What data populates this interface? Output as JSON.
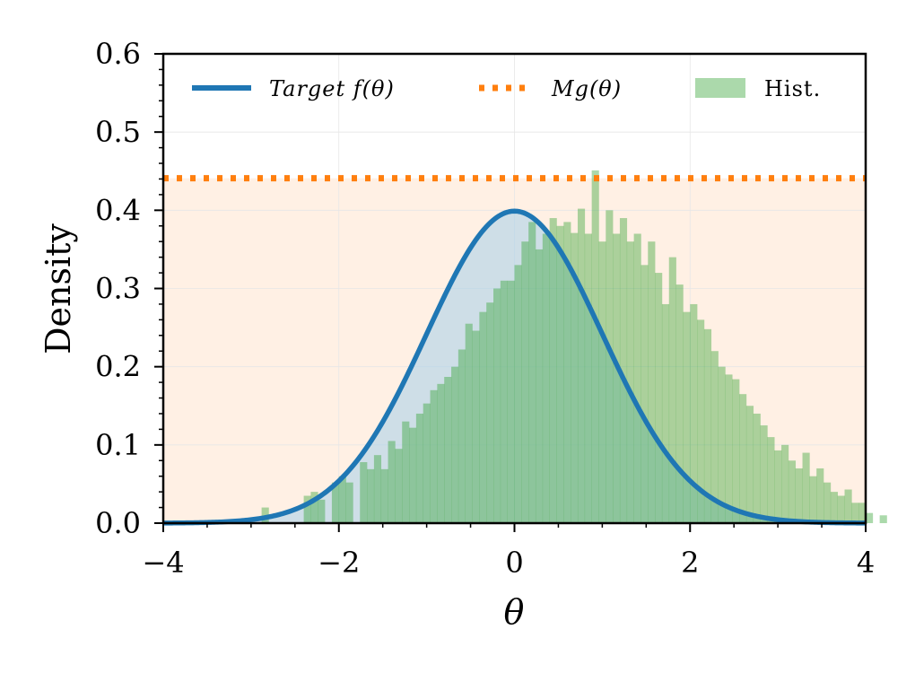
{
  "chart_data": {
    "type": "histogram",
    "xlabel": "θ",
    "ylabel": "Density",
    "xlim": [
      -4,
      4
    ],
    "ylim": [
      0,
      0.6
    ],
    "x_ticks": [
      "−4",
      "−2",
      "0",
      "2",
      "4"
    ],
    "y_ticks": [
      "0.0",
      "0.1",
      "0.2",
      "0.3",
      "0.4",
      "0.5",
      "0.6"
    ],
    "grid": true,
    "legend_position": "top",
    "colors": {
      "target": "#1f77b4",
      "envelope": "#ff7f0e",
      "envelope_fill": "#fff0e4",
      "histogram": "#2ca02c",
      "histogram_alpha": 0.4
    },
    "series": [
      {
        "name": "Target f(θ)",
        "kind": "line",
        "function": "standard-normal-pdf"
      },
      {
        "name": "Mg(θ)",
        "kind": "dotted-line",
        "constant": 0.441
      },
      {
        "name": "Hist.",
        "kind": "histogram",
        "bin_start": -2.88,
        "bin_width": 0.08,
        "heights": [
          0.02,
          0.0,
          0.0,
          0.0,
          0.0,
          0.0,
          0.035,
          0.04,
          0.03,
          0.0,
          0.052,
          0.06,
          0.052,
          0.0,
          0.078,
          0.069,
          0.087,
          0.069,
          0.105,
          0.095,
          0.13,
          0.122,
          0.14,
          0.153,
          0.17,
          0.178,
          0.187,
          0.2,
          0.222,
          0.255,
          0.246,
          0.27,
          0.282,
          0.3,
          0.31,
          0.31,
          0.33,
          0.36,
          0.385,
          0.35,
          0.37,
          0.39,
          0.38,
          0.385,
          0.371,
          0.402,
          0.37,
          0.451,
          0.36,
          0.4,
          0.37,
          0.39,
          0.36,
          0.37,
          0.33,
          0.36,
          0.32,
          0.28,
          0.34,
          0.305,
          0.27,
          0.28,
          0.26,
          0.248,
          0.22,
          0.2,
          0.19,
          0.184,
          0.165,
          0.15,
          0.14,
          0.125,
          0.11,
          0.093,
          0.1,
          0.08,
          0.07,
          0.09,
          0.06,
          0.07,
          0.052,
          0.04,
          0.035,
          0.043,
          0.026,
          0.026,
          0.013,
          0.0,
          0.01,
          0.0
        ]
      }
    ]
  }
}
